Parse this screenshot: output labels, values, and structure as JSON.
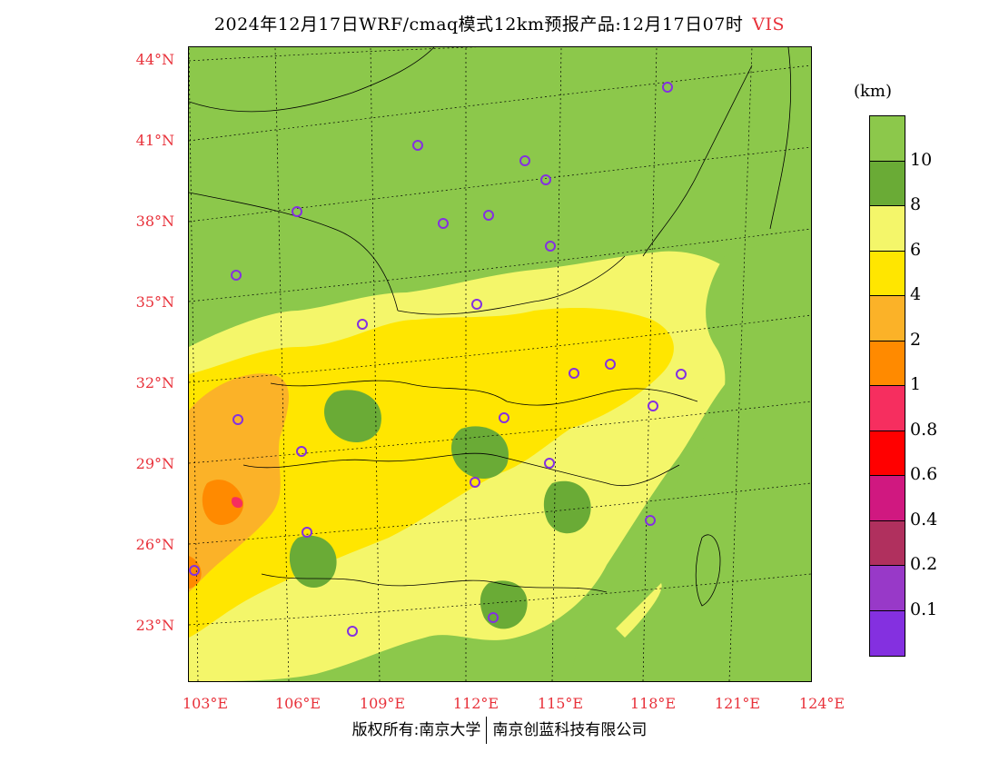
{
  "title": {
    "text": "2024年12月17日WRF/cmaq模式12km预报产品:12月17日07时",
    "variable": "VIS"
  },
  "lat_labels": [
    "44°N",
    "41°N",
    "38°N",
    "35°N",
    "32°N",
    "29°N",
    "26°N",
    "23°N"
  ],
  "lon_labels": [
    "103°E",
    "106°E",
    "109°E",
    "112°E",
    "115°E",
    "118°E",
    "121°E",
    "124°E"
  ],
  "colorbar": {
    "unit": "(km)",
    "colors": [
      "#8cc84b",
      "#6aab36",
      "#f4f66a",
      "#ffe600",
      "#fbb228",
      "#ff8a00",
      "#f62e5f",
      "#ff0000",
      "#d01880",
      "#b0305e",
      "#9839c8",
      "#8430e0"
    ],
    "labels": [
      "10",
      "8",
      "6",
      "4",
      "2",
      "1",
      "0.8",
      "0.6",
      "0.4",
      "0.2",
      "0.1"
    ]
  },
  "footer": {
    "left": "版权所有:南京大学",
    "right": "南京创蓝科技有限公司"
  }
}
